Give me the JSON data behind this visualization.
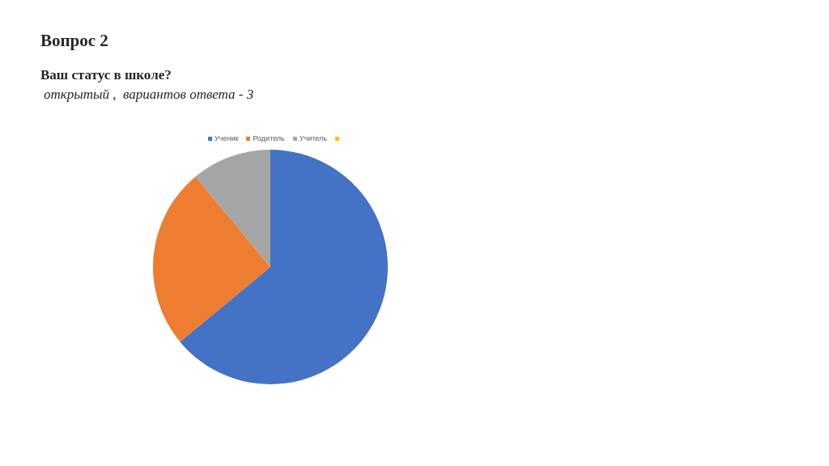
{
  "chart_data": {
    "type": "pie",
    "title": "Вопрос 2",
    "subtitle": "Ваш статус в школе?",
    "annotations": [
      "открытый ,  вариантов ответа - 3"
    ],
    "categories": [
      "Ученик",
      "Родитель",
      "Учитель",
      null
    ],
    "values": [
      64,
      25,
      11,
      0
    ],
    "colors": [
      "#4472c4",
      "#ed7d31",
      "#a5a5a5",
      "#ffc000"
    ],
    "legend": "top"
  }
}
